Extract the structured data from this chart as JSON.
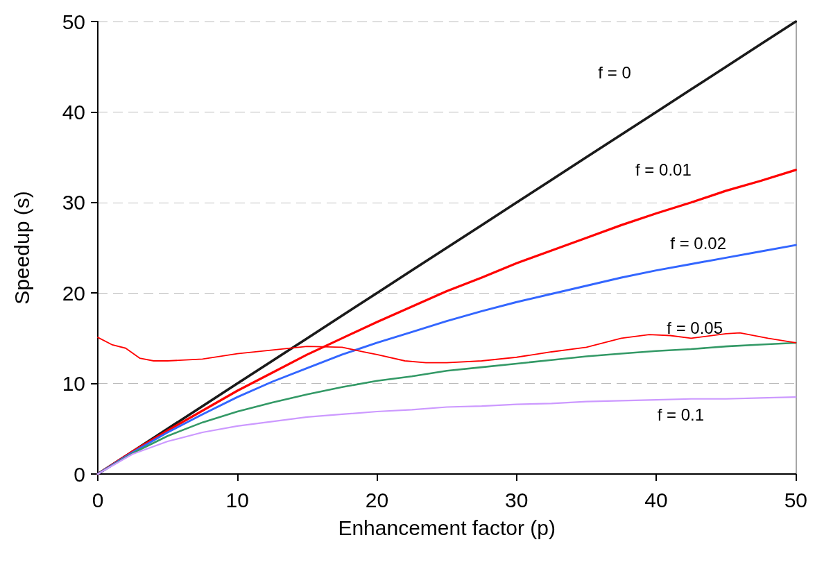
{
  "chart_data": {
    "type": "line",
    "xlabel": "Enhancement factor (p)",
    "ylabel": "Speedup (s)",
    "x": [
      0,
      2.5,
      5,
      7.5,
      10,
      12.5,
      15,
      17.5,
      20,
      22.5,
      25,
      27.5,
      30,
      32.5,
      35,
      37.5,
      40,
      42.5,
      45,
      47.5,
      50
    ],
    "series": [
      {
        "name": "f = 0",
        "color": "#1a1a1a",
        "values": [
          0,
          2.5,
          5,
          7.5,
          10,
          12.5,
          15,
          17.5,
          20,
          22.5,
          25,
          27.5,
          30,
          32.5,
          35,
          37.5,
          40,
          42.5,
          45,
          47.5,
          50
        ]
      },
      {
        "name": "f = 0.01",
        "color": "#ff0000",
        "values": [
          0,
          2.5,
          4.8,
          7.0,
          9.2,
          11.2,
          13.2,
          15.0,
          16.8,
          18.5,
          20.2,
          21.7,
          23.3,
          24.7,
          26.1,
          27.5,
          28.8,
          30.0,
          31.3,
          32.4,
          33.6
        ]
      },
      {
        "name": "f = 0.02",
        "color": "#3366ff",
        "values": [
          0,
          2.4,
          4.6,
          6.6,
          8.5,
          10.2,
          11.7,
          13.2,
          14.5,
          15.7,
          16.9,
          18.0,
          19.0,
          19.9,
          20.8,
          21.7,
          22.5,
          23.2,
          23.9,
          24.6,
          25.3
        ]
      },
      {
        "name": "f = 0.05",
        "color": "#339966",
        "values": [
          0,
          2.3,
          4.2,
          5.7,
          6.9,
          7.9,
          8.8,
          9.6,
          10.3,
          10.8,
          11.4,
          11.8,
          12.2,
          12.6,
          13.0,
          13.3,
          13.6,
          13.8,
          14.1,
          14.3,
          14.5
        ]
      },
      {
        "name": "f = 0.1",
        "color": "#cc99ff",
        "values": [
          0,
          2.2,
          3.6,
          4.6,
          5.3,
          5.8,
          6.3,
          6.6,
          6.9,
          7.1,
          7.4,
          7.5,
          7.7,
          7.8,
          8.0,
          8.1,
          8.2,
          8.3,
          8.3,
          8.4,
          8.5
        ]
      },
      {
        "color": "#ff0000",
        "x": [
          0,
          1,
          2,
          3,
          4,
          5,
          7.5,
          10,
          12.5,
          15,
          17.5,
          19,
          20,
          22,
          23.5,
          25,
          27.5,
          30,
          32.5,
          35,
          37.5,
          39.5,
          41,
          42.5,
          45,
          46,
          48,
          50
        ],
        "values": [
          15.1,
          14.3,
          13.9,
          12.8,
          12.5,
          12.5,
          12.7,
          13.3,
          13.7,
          14.1,
          14.0,
          13.5,
          13.2,
          12.5,
          12.3,
          12.3,
          12.5,
          12.9,
          13.5,
          14.0,
          15.0,
          15.4,
          15.3,
          15.0,
          15.5,
          15.6,
          15.0,
          14.5
        ]
      }
    ],
    "xlim": [
      0,
      50
    ],
    "xticks": [
      0,
      10,
      20,
      30,
      40,
      50
    ],
    "ylim": [
      0,
      50
    ],
    "yticks": [
      0,
      10,
      20,
      30,
      40,
      50
    ],
    "grid": "y",
    "legend": false,
    "marker": "none",
    "line_style": "solid"
  }
}
